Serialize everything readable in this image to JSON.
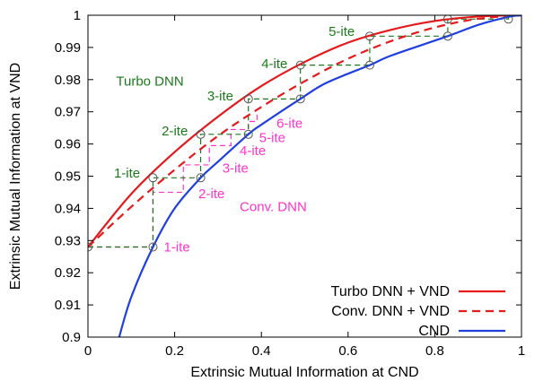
{
  "chart_data": {
    "type": "line",
    "xlabel": "Extrinsic Mutual Information at CND",
    "ylabel": "Extrinsic Mutual Information at VND",
    "xlim": [
      0,
      1
    ],
    "ylim": [
      0.9,
      1
    ],
    "x_ticks": [
      "0",
      "0.2",
      "0.4",
      "0.6",
      "0.8",
      "1"
    ],
    "y_ticks": [
      "0.9",
      "0.91",
      "0.92",
      "0.93",
      "0.94",
      "0.95",
      "0.96",
      "0.97",
      "0.98",
      "0.99",
      "1"
    ],
    "grid": false,
    "legend_position": "bottom-right",
    "colors": {
      "turbo": "#e41a1c",
      "conv": "#e41a1c",
      "cnd": "#1f3fe0",
      "turbo_traj": "#1a7a1a",
      "conv_traj": "#ff33cc"
    },
    "series": [
      {
        "name": "Turbo DNN + VND",
        "style": "solid",
        "color": "#e41a1c",
        "x": [
          0,
          0.1,
          0.2,
          0.3,
          0.4,
          0.5,
          0.6,
          0.7,
          0.8,
          0.9,
          1.0
        ],
        "y": [
          0.928,
          0.9445,
          0.9575,
          0.9685,
          0.978,
          0.9855,
          0.9915,
          0.9955,
          0.9982,
          0.9996,
          1.0
        ]
      },
      {
        "name": "Conv. DNN + VND",
        "style": "dashed",
        "color": "#e41a1c",
        "x": [
          0,
          0.1,
          0.2,
          0.3,
          0.4,
          0.5,
          0.6,
          0.7,
          0.8,
          0.9,
          1.0
        ],
        "y": [
          0.928,
          0.9405,
          0.952,
          0.9625,
          0.9715,
          0.9795,
          0.9865,
          0.992,
          0.9962,
          0.9989,
          1.0
        ]
      },
      {
        "name": "CND",
        "style": "solid",
        "color": "#1f3fe0",
        "x": [
          0.072,
          0.1,
          0.15,
          0.2,
          0.26,
          0.3,
          0.37,
          0.4,
          0.49,
          0.55,
          0.65,
          0.7,
          0.83,
          0.9,
          0.97,
          1.0
        ],
        "y": [
          0.9,
          0.9125,
          0.928,
          0.94,
          0.9495,
          0.9545,
          0.963,
          0.966,
          0.974,
          0.979,
          0.9845,
          0.9875,
          0.9935,
          0.997,
          0.9995,
          1.0
        ]
      }
    ],
    "turbo_trajectory": {
      "color": "#1a7a1a",
      "points": [
        [
          0,
          0.928
        ],
        [
          0.15,
          0.928
        ],
        [
          0.15,
          0.9495
        ],
        [
          0.26,
          0.9495
        ],
        [
          0.26,
          0.963
        ],
        [
          0.37,
          0.963
        ],
        [
          0.37,
          0.974
        ],
        [
          0.49,
          0.974
        ],
        [
          0.49,
          0.9845
        ],
        [
          0.65,
          0.9845
        ],
        [
          0.65,
          0.9935
        ],
        [
          0.83,
          0.9935
        ],
        [
          0.83,
          0.9988
        ],
        [
          0.97,
          0.9988
        ],
        [
          0.97,
          1.0
        ]
      ],
      "circles": [
        [
          0.15,
          0.928
        ],
        [
          0.15,
          0.9495
        ],
        [
          0.26,
          0.9495
        ],
        [
          0.26,
          0.963
        ],
        [
          0.37,
          0.963
        ],
        [
          0.37,
          0.974
        ],
        [
          0.49,
          0.974
        ],
        [
          0.49,
          0.9845
        ],
        [
          0.65,
          0.9845
        ],
        [
          0.65,
          0.9935
        ],
        [
          0.83,
          0.9935
        ],
        [
          0.83,
          0.9988
        ],
        [
          0.97,
          0.9988
        ],
        [
          0,
          0.928
        ]
      ],
      "labels": [
        {
          "text": "1-ite",
          "x": 0.06,
          "y": 0.951
        },
        {
          "text": "2-ite",
          "x": 0.17,
          "y": 0.964
        },
        {
          "text": "3-ite",
          "x": 0.275,
          "y": 0.975
        },
        {
          "text": "4-ite",
          "x": 0.4,
          "y": 0.985
        },
        {
          "text": "5-ite",
          "x": 0.555,
          "y": 0.995
        }
      ]
    },
    "conv_trajectory": {
      "color": "#ff33cc",
      "points": [
        [
          0,
          0.928
        ],
        [
          0.15,
          0.928
        ],
        [
          0.15,
          0.945
        ],
        [
          0.22,
          0.945
        ],
        [
          0.22,
          0.9535
        ],
        [
          0.28,
          0.9535
        ],
        [
          0.28,
          0.9595
        ],
        [
          0.33,
          0.9595
        ],
        [
          0.33,
          0.9645
        ],
        [
          0.37,
          0.9645
        ],
        [
          0.37,
          0.967
        ],
        [
          0.39,
          0.967
        ],
        [
          0.39,
          0.9695
        ]
      ],
      "labels": [
        {
          "text": "1-ite",
          "x": 0.175,
          "y": 0.928
        },
        {
          "text": "2-ite",
          "x": 0.255,
          "y": 0.9445
        },
        {
          "text": "3-ite",
          "x": 0.31,
          "y": 0.9525
        },
        {
          "text": "4-ite",
          "x": 0.35,
          "y": 0.958
        },
        {
          "text": "5-ite",
          "x": 0.395,
          "y": 0.962
        },
        {
          "text": "6-ite",
          "x": 0.435,
          "y": 0.9665
        }
      ]
    },
    "annotations": [
      {
        "text": "Turbo DNN",
        "x": 0.065,
        "y": 0.9795,
        "color": "#1a7a1a"
      },
      {
        "text": "Conv. DNN",
        "x": 0.35,
        "y": 0.9405,
        "color": "#ff33cc"
      }
    ]
  }
}
